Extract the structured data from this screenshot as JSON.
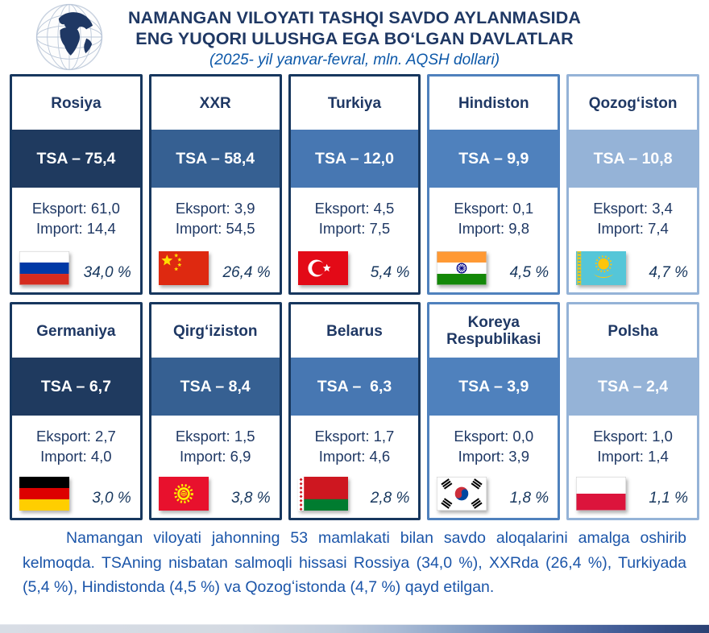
{
  "header": {
    "title_line1": "NAMANGAN VILOYATI TASHQI SAVDO AYLANMASIDA",
    "title_line2": "ENG YUQORI ULUSHGA EGA BOʻLGAN DAVLATLAR",
    "subtitle": "(2025- yil yanvar-fevral, mln. AQSH dollari)",
    "globe_icon": "globe-icon",
    "title_color": "#1F3864",
    "subtitle_color": "#0b57a8"
  },
  "cards": [
    {
      "name": "Rosiya",
      "tsa": "TSA – 75,4",
      "eksport": "Eksport: 61,0",
      "import": "Import: 14,4",
      "share": "34,0 %",
      "flag": "russia",
      "band_color": "#1F3A5F",
      "border_color": "#17375E"
    },
    {
      "name": "XXR",
      "tsa": "TSA – 58,4",
      "eksport": "Eksport: 3,9",
      "import": "Import: 54,5",
      "share": "26,4 %",
      "flag": "china",
      "band_color": "#366092",
      "border_color": "#17375E"
    },
    {
      "name": "Turkiya",
      "tsa": "TSA – 12,0",
      "eksport": "Eksport: 4,5",
      "import": "Import: 7,5",
      "share": "5,4 %",
      "flag": "turkey",
      "band_color": "#4777B2",
      "border_color": "#17375E"
    },
    {
      "name": "Hindiston",
      "tsa": "TSA – 9,9",
      "eksport": "Eksport: 0,1",
      "import": "Import: 9,8",
      "share": "4,5 %",
      "flag": "india",
      "band_color": "#4F81BD",
      "border_color": "#4F81BD"
    },
    {
      "name": "Qozogʻiston",
      "tsa": "TSA – 10,8",
      "eksport": "Eksport: 3,4",
      "import": "Import: 7,4",
      "share": "4,7 %",
      "flag": "kazakhstan",
      "band_color": "#95B3D7",
      "border_color": "#95B3D7"
    },
    {
      "name": "Germaniya",
      "tsa": "TSA – 6,7",
      "eksport": "Eksport: 2,7",
      "import": "Import: 4,0",
      "share": "3,0 %",
      "flag": "germany",
      "band_color": "#1F3A5F",
      "border_color": "#17375E"
    },
    {
      "name": "Qirgʻiziston",
      "tsa": "TSA – 8,4",
      "eksport": "Eksport: 1,5",
      "import": "Import: 6,9",
      "share": "3,8 %",
      "flag": "kyrgyzstan",
      "band_color": "#366092",
      "border_color": "#17375E"
    },
    {
      "name": "Belarus",
      "tsa": "TSA –  6,3",
      "eksport": "Eksport: 1,7",
      "import": "Import: 4,6",
      "share": "2,8 %",
      "flag": "belarus",
      "band_color": "#4777B2",
      "border_color": "#17375E"
    },
    {
      "name": "Koreya Respublikasi",
      "tsa": "TSA – 3,9",
      "eksport": "Eksport: 0,0",
      "import": "Import: 3,9",
      "share": "1,8 %",
      "flag": "south-korea",
      "band_color": "#4F81BD",
      "border_color": "#4F81BD"
    },
    {
      "name": "Polsha",
      "tsa": "TSA – 2,4",
      "eksport": "Eksport: 1,0",
      "import": "Import: 1,4",
      "share": "1,1 %",
      "flag": "poland",
      "band_color": "#95B3D7",
      "border_color": "#95B3D7"
    }
  ],
  "footer": {
    "text": "Namangan viloyati jahonning 53 mamlakati bilan savdo aloqalarini amalga oshirib kelmoqda. TSAning nisbatan salmoqli hissasi Rossiya (34,0 %), XXRda (26,4 %), Turkiyada (5,4 %), Hindistonda (4,5 %) va Qozogʻistonda (4,7 %) qayd etilgan.",
    "text_color": "#1b55a9"
  },
  "chart_data": {
    "type": "table",
    "title": "NAMANGAN VILOYATI TASHQI SAVDO AYLANMASIDA ENG YUQORI ULUSHGA EGA BOʻLGAN DAVLATLAR",
    "subtitle": "(2025- yil yanvar-fevral, mln. AQSH dollari)",
    "units": "mln. AQSH dollari",
    "categories": [
      "Rosiya",
      "XXR",
      "Turkiya",
      "Hindiston",
      "Qozogʻiston",
      "Germaniya",
      "Qirgʻiziston",
      "Belarus",
      "Koreya Respublikasi",
      "Polsha"
    ],
    "series": [
      {
        "name": "TSA",
        "values": [
          75.4,
          58.4,
          12.0,
          9.9,
          10.8,
          6.7,
          8.4,
          6.3,
          3.9,
          2.4
        ]
      },
      {
        "name": "Eksport",
        "values": [
          61.0,
          3.9,
          4.5,
          0.1,
          3.4,
          2.7,
          1.5,
          1.7,
          0.0,
          1.0
        ]
      },
      {
        "name": "Import",
        "values": [
          14.4,
          54.5,
          7.5,
          9.8,
          7.4,
          4.0,
          6.9,
          4.6,
          3.9,
          1.4
        ]
      },
      {
        "name": "Ulush %",
        "values": [
          34.0,
          26.4,
          5.4,
          4.5,
          4.7,
          3.0,
          3.8,
          2.8,
          1.8,
          1.1
        ]
      }
    ]
  }
}
